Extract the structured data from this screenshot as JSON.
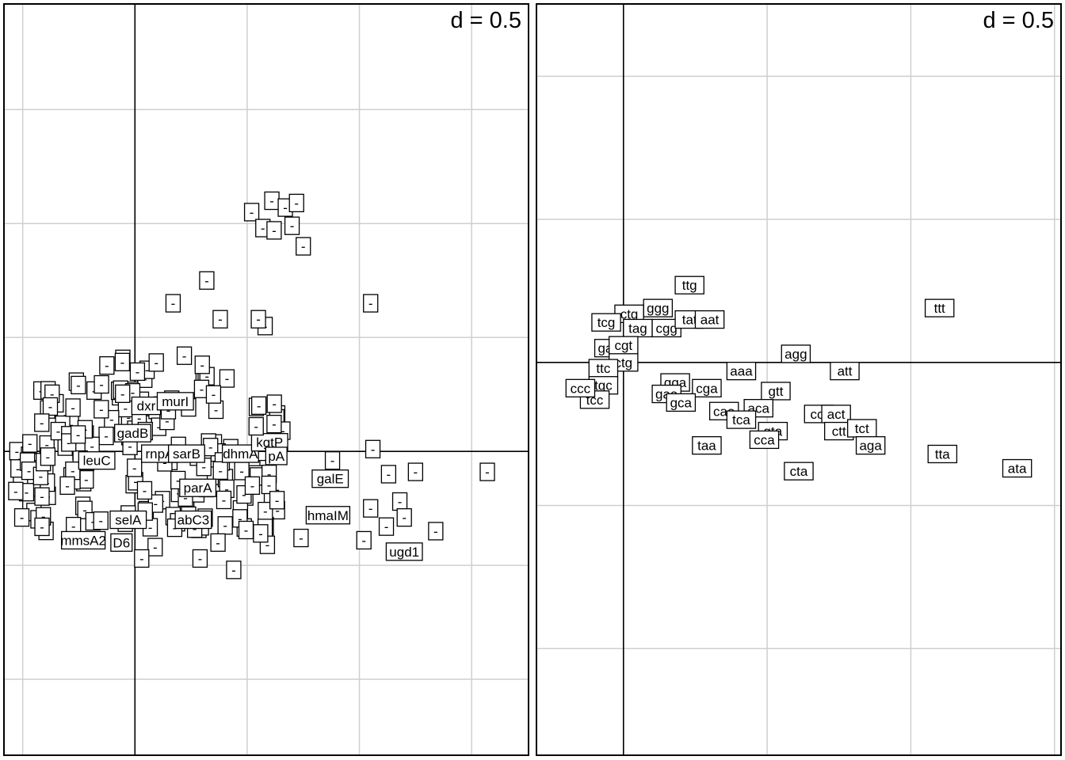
{
  "chart_data": [
    {
      "type": "scatter",
      "d_label": "d = 0.5",
      "grid": true,
      "grid_step": 0.5,
      "xlim": [
        -0.58,
        1.75
      ],
      "ylim": [
        -1.33,
        1.96
      ],
      "origin_lines": true,
      "point_style": "text-labels-in-boxes",
      "visible_labels": [
        "dxr",
        "murI",
        "gadB",
        "leuC",
        "rnpA",
        "sarB",
        "dhmA",
        "kgtP",
        "parA",
        "galE",
        "ugd1",
        "hmaIM",
        "selA",
        "mmsA2",
        "D6"
      ],
      "points": [
        {
          "x": 0.05,
          "y": 0.2,
          "label": "dxr"
        },
        {
          "x": 0.18,
          "y": 0.22,
          "label": "murI"
        },
        {
          "x": -0.01,
          "y": 0.08,
          "label": "gadB"
        },
        {
          "x": -0.17,
          "y": -0.04,
          "label": "leuC"
        },
        {
          "x": 0.11,
          "y": -0.01,
          "label": "rnpA"
        },
        {
          "x": 0.23,
          "y": -0.01,
          "label": "sarB"
        },
        {
          "x": 0.47,
          "y": -0.01,
          "label": "dhmA"
        },
        {
          "x": 0.6,
          "y": 0.04,
          "label": "kgtP"
        },
        {
          "x": 0.63,
          "y": -0.02,
          "label": "pA"
        },
        {
          "x": 0.28,
          "y": -0.16,
          "label": "parA"
        },
        {
          "x": 0.87,
          "y": -0.12,
          "label": "galE"
        },
        {
          "x": 1.2,
          "y": -0.44,
          "label": "ugd1"
        },
        {
          "x": 0.86,
          "y": -0.28,
          "label": "hmaIM"
        },
        {
          "x": -0.03,
          "y": -0.3,
          "label": "selA"
        },
        {
          "x": 0.26,
          "y": -0.3,
          "label": "abC3"
        },
        {
          "x": -0.23,
          "y": -0.39,
          "label": "mmsA2"
        },
        {
          "x": -0.06,
          "y": -0.4,
          "label": "D6"
        },
        {
          "x": 0.52,
          "y": 1.05,
          "label": "-"
        },
        {
          "x": 0.61,
          "y": 1.1,
          "label": "-"
        },
        {
          "x": 0.67,
          "y": 1.07,
          "label": "-"
        },
        {
          "x": 0.72,
          "y": 1.09,
          "label": "-"
        },
        {
          "x": 0.7,
          "y": 0.99,
          "label": "-"
        },
        {
          "x": 0.57,
          "y": 0.98,
          "label": "-"
        },
        {
          "x": 0.62,
          "y": 0.97,
          "label": "-"
        },
        {
          "x": 0.75,
          "y": 0.9,
          "label": "-"
        },
        {
          "x": 0.32,
          "y": 0.75,
          "label": "-"
        },
        {
          "x": 0.17,
          "y": 0.65,
          "label": "-"
        },
        {
          "x": 1.05,
          "y": 0.65,
          "label": "-"
        },
        {
          "x": 0.38,
          "y": 0.58,
          "label": "-"
        },
        {
          "x": 0.58,
          "y": 0.55,
          "label": "-"
        },
        {
          "x": 0.55,
          "y": 0.58,
          "label": "-"
        },
        {
          "x": 1.06,
          "y": 0.01,
          "label": "-"
        },
        {
          "x": 0.88,
          "y": -0.04,
          "label": "-"
        },
        {
          "x": 1.13,
          "y": -0.1,
          "label": "-"
        },
        {
          "x": 1.25,
          "y": -0.09,
          "label": "-"
        },
        {
          "x": 1.57,
          "y": -0.09,
          "label": "-"
        },
        {
          "x": 1.05,
          "y": -0.25,
          "label": "-"
        },
        {
          "x": 1.18,
          "y": -0.22,
          "label": "-"
        },
        {
          "x": 1.2,
          "y": -0.29,
          "label": "-"
        },
        {
          "x": 1.12,
          "y": -0.33,
          "label": "-"
        },
        {
          "x": 1.34,
          "y": -0.35,
          "label": "-"
        },
        {
          "x": 1.02,
          "y": -0.39,
          "label": "-"
        },
        {
          "x": 0.74,
          "y": -0.38,
          "label": "-"
        },
        {
          "x": 0.59,
          "y": -0.41,
          "label": "-"
        },
        {
          "x": 0.56,
          "y": -0.36,
          "label": "-"
        },
        {
          "x": 0.37,
          "y": -0.4,
          "label": "-"
        },
        {
          "x": 0.29,
          "y": -0.47,
          "label": "-"
        },
        {
          "x": 0.44,
          "y": -0.52,
          "label": "-"
        },
        {
          "x": 0.09,
          "y": -0.42,
          "label": "-"
        },
        {
          "x": 0.03,
          "y": -0.47,
          "label": "-"
        },
        {
          "x": 0.22,
          "y": 0.42,
          "label": "-"
        },
        {
          "x": 0.3,
          "y": 0.38,
          "label": "-"
        },
        {
          "x": 0.41,
          "y": 0.32,
          "label": "-"
        },
        {
          "x": 0.35,
          "y": 0.25,
          "label": "-"
        },
        {
          "x": 0.62,
          "y": 0.12,
          "label": "-"
        },
        {
          "x": 0.54,
          "y": 0.11,
          "label": "-"
        }
      ],
      "cluster_note": ""
    },
    {
      "type": "scatter",
      "d_label": "d = 0.5",
      "grid": true,
      "grid_step": 0.5,
      "xlim": [
        -0.3,
        1.52
      ],
      "ylim": [
        -1.37,
        1.25
      ],
      "origin_lines": true,
      "point_style": "text-labels-in-boxes",
      "points": [
        {
          "x": 0.23,
          "y": 0.27,
          "label": "ttg"
        },
        {
          "x": 0.12,
          "y": 0.19,
          "label": "ggg"
        },
        {
          "x": 0.02,
          "y": 0.17,
          "label": "ctg"
        },
        {
          "x": -0.06,
          "y": 0.14,
          "label": "tcg"
        },
        {
          "x": 0.05,
          "y": 0.12,
          "label": "tag"
        },
        {
          "x": 0.15,
          "y": 0.12,
          "label": "cgg"
        },
        {
          "x": 0.23,
          "y": 0.15,
          "label": "tat"
        },
        {
          "x": 0.3,
          "y": 0.15,
          "label": "aat"
        },
        {
          "x": 1.1,
          "y": 0.19,
          "label": "ttt"
        },
        {
          "x": -0.05,
          "y": 0.05,
          "label": "gag"
        },
        {
          "x": 0.0,
          "y": 0.06,
          "label": "cgt"
        },
        {
          "x": 0.0,
          "y": 0.0,
          "label": "ctg"
        },
        {
          "x": -0.07,
          "y": -0.02,
          "label": "ttc"
        },
        {
          "x": -0.07,
          "y": -0.08,
          "label": "tgc"
        },
        {
          "x": -0.1,
          "y": -0.13,
          "label": "tcc"
        },
        {
          "x": -0.15,
          "y": -0.09,
          "label": "ccc"
        },
        {
          "x": 0.6,
          "y": 0.03,
          "label": "agg"
        },
        {
          "x": 0.41,
          "y": -0.03,
          "label": "aaa"
        },
        {
          "x": 0.77,
          "y": -0.03,
          "label": "att"
        },
        {
          "x": 0.18,
          "y": -0.07,
          "label": "gga"
        },
        {
          "x": 0.29,
          "y": -0.09,
          "label": "cga"
        },
        {
          "x": 0.15,
          "y": -0.11,
          "label": "gaa"
        },
        {
          "x": 0.2,
          "y": -0.14,
          "label": "gca"
        },
        {
          "x": 0.53,
          "y": -0.1,
          "label": "gtt"
        },
        {
          "x": 0.47,
          "y": -0.16,
          "label": "aca"
        },
        {
          "x": 0.35,
          "y": -0.17,
          "label": "caa"
        },
        {
          "x": 0.41,
          "y": -0.2,
          "label": "tca"
        },
        {
          "x": 0.68,
          "y": -0.18,
          "label": "cct"
        },
        {
          "x": 0.74,
          "y": -0.18,
          "label": "act"
        },
        {
          "x": 0.75,
          "y": -0.24,
          "label": "ctt"
        },
        {
          "x": 0.83,
          "y": -0.23,
          "label": "tct"
        },
        {
          "x": 0.52,
          "y": -0.24,
          "label": "gta"
        },
        {
          "x": 0.49,
          "y": -0.27,
          "label": "cca"
        },
        {
          "x": 0.29,
          "y": -0.29,
          "label": "taa"
        },
        {
          "x": 0.86,
          "y": -0.29,
          "label": "aga"
        },
        {
          "x": 1.11,
          "y": -0.32,
          "label": "tta"
        },
        {
          "x": 1.37,
          "y": -0.37,
          "label": "ata"
        },
        {
          "x": 0.61,
          "y": -0.38,
          "label": "cta"
        }
      ]
    }
  ]
}
